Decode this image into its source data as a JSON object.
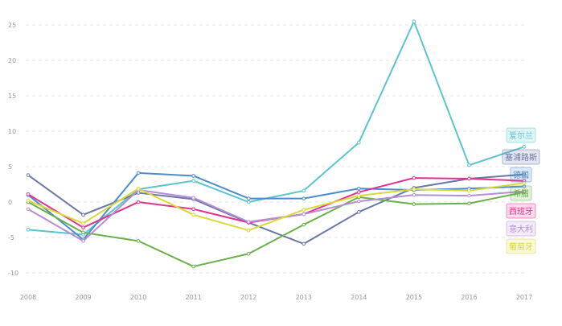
{
  "chart_data": {
    "type": "line",
    "title": "",
    "xlabel": "",
    "ylabel": "",
    "x": [
      "2008",
      "2009",
      "2010",
      "2011",
      "2012",
      "2013",
      "2014",
      "2015",
      "2016",
      "2017"
    ],
    "ylim": [
      -12,
      27
    ],
    "yticks": [
      -10,
      -5,
      0,
      5,
      10,
      15,
      20,
      25
    ],
    "grid": true,
    "legend": "end-labels",
    "series": [
      {
        "name": "爱尔兰",
        "color": "#5bc4cf",
        "values": [
          -3.9,
          -4.6,
          1.8,
          3.0,
          0.0,
          1.6,
          8.4,
          25.5,
          5.2,
          7.8
        ]
      },
      {
        "name": "塞浦路斯",
        "color": "#6b77a6",
        "values": [
          3.8,
          -1.8,
          1.3,
          0.4,
          -2.9,
          -5.9,
          -1.4,
          2.0,
          3.3,
          3.9
        ]
      },
      {
        "name": "德国",
        "color": "#4a8ccc",
        "values": [
          1.0,
          -5.3,
          4.1,
          3.7,
          0.5,
          0.5,
          1.9,
          1.7,
          1.9,
          2.2
        ]
      },
      {
        "name": "希腊",
        "color": "#6ab04c",
        "values": [
          0.0,
          -4.3,
          -5.5,
          -9.1,
          -7.3,
          -3.2,
          0.7,
          -0.3,
          -0.2,
          1.4
        ]
      },
      {
        "name": "西班牙",
        "color": "#e0338e",
        "values": [
          1.1,
          -3.6,
          0.0,
          -1.0,
          -2.9,
          -1.7,
          1.4,
          3.4,
          3.3,
          3.0
        ]
      },
      {
        "name": "意大利",
        "color": "#b58ed6",
        "values": [
          -1.0,
          -5.5,
          1.7,
          0.6,
          -2.8,
          -1.7,
          0.1,
          1.0,
          0.9,
          1.5
        ]
      },
      {
        "name": "葡萄牙",
        "color": "#d9d93a",
        "values": [
          0.2,
          -3.0,
          1.9,
          -1.8,
          -4.0,
          -1.1,
          0.9,
          1.8,
          1.6,
          2.7
        ]
      }
    ]
  }
}
